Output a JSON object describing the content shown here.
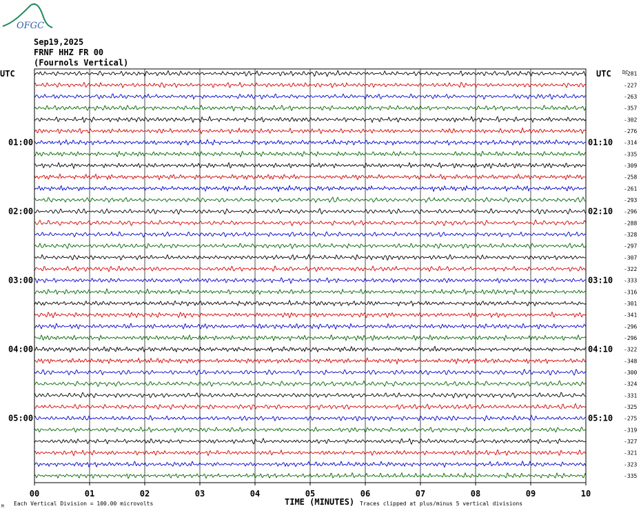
{
  "header": {
    "logo_text": "OFGC",
    "date": "Sep19,2025",
    "station": "FRNF HHZ FR 00",
    "location": "(Fournols Vertical)"
  },
  "chart_data": {
    "type": "line",
    "title": "",
    "left_axis_label": "UTC",
    "right_axis_label": "UTC",
    "dc_header": "DC",
    "xlabel": "TIME (MINUTES)",
    "x_ticks": [
      "00",
      "01",
      "02",
      "03",
      "04",
      "05",
      "06",
      "07",
      "08",
      "09",
      "10"
    ],
    "xlim": [
      0,
      10
    ],
    "grid": true,
    "trace_colors": [
      "#000000",
      "#d40000",
      "#0000cc",
      "#006600"
    ],
    "left_hour_labels": [
      "01:00",
      "02:00",
      "03:00",
      "04:00",
      "05:00"
    ],
    "right_hour_labels": [
      "01:10",
      "02:10",
      "03:10",
      "04:10",
      "05:10"
    ],
    "dc_offsets": [
      "-281",
      "-227",
      "-263",
      "-357",
      "-302",
      "-276",
      "-314",
      "-335",
      "-309",
      "-258",
      "-261",
      "-293",
      "-296",
      "-288",
      "-328",
      "-297",
      "-307",
      "-322",
      "-333",
      "-316",
      "-301",
      "-341",
      "-296",
      "-296",
      "-322",
      "-348",
      "-300",
      "-324",
      "-331",
      "-325",
      "-275",
      "-319",
      "-327",
      "-321",
      "-323",
      "-335"
    ],
    "footnote_left": "Each Vertical Division =  100.00 microvolts",
    "footnote_right": "Traces clipped at plus/minus 5 vertical divisions",
    "corner_mark": "M"
  }
}
